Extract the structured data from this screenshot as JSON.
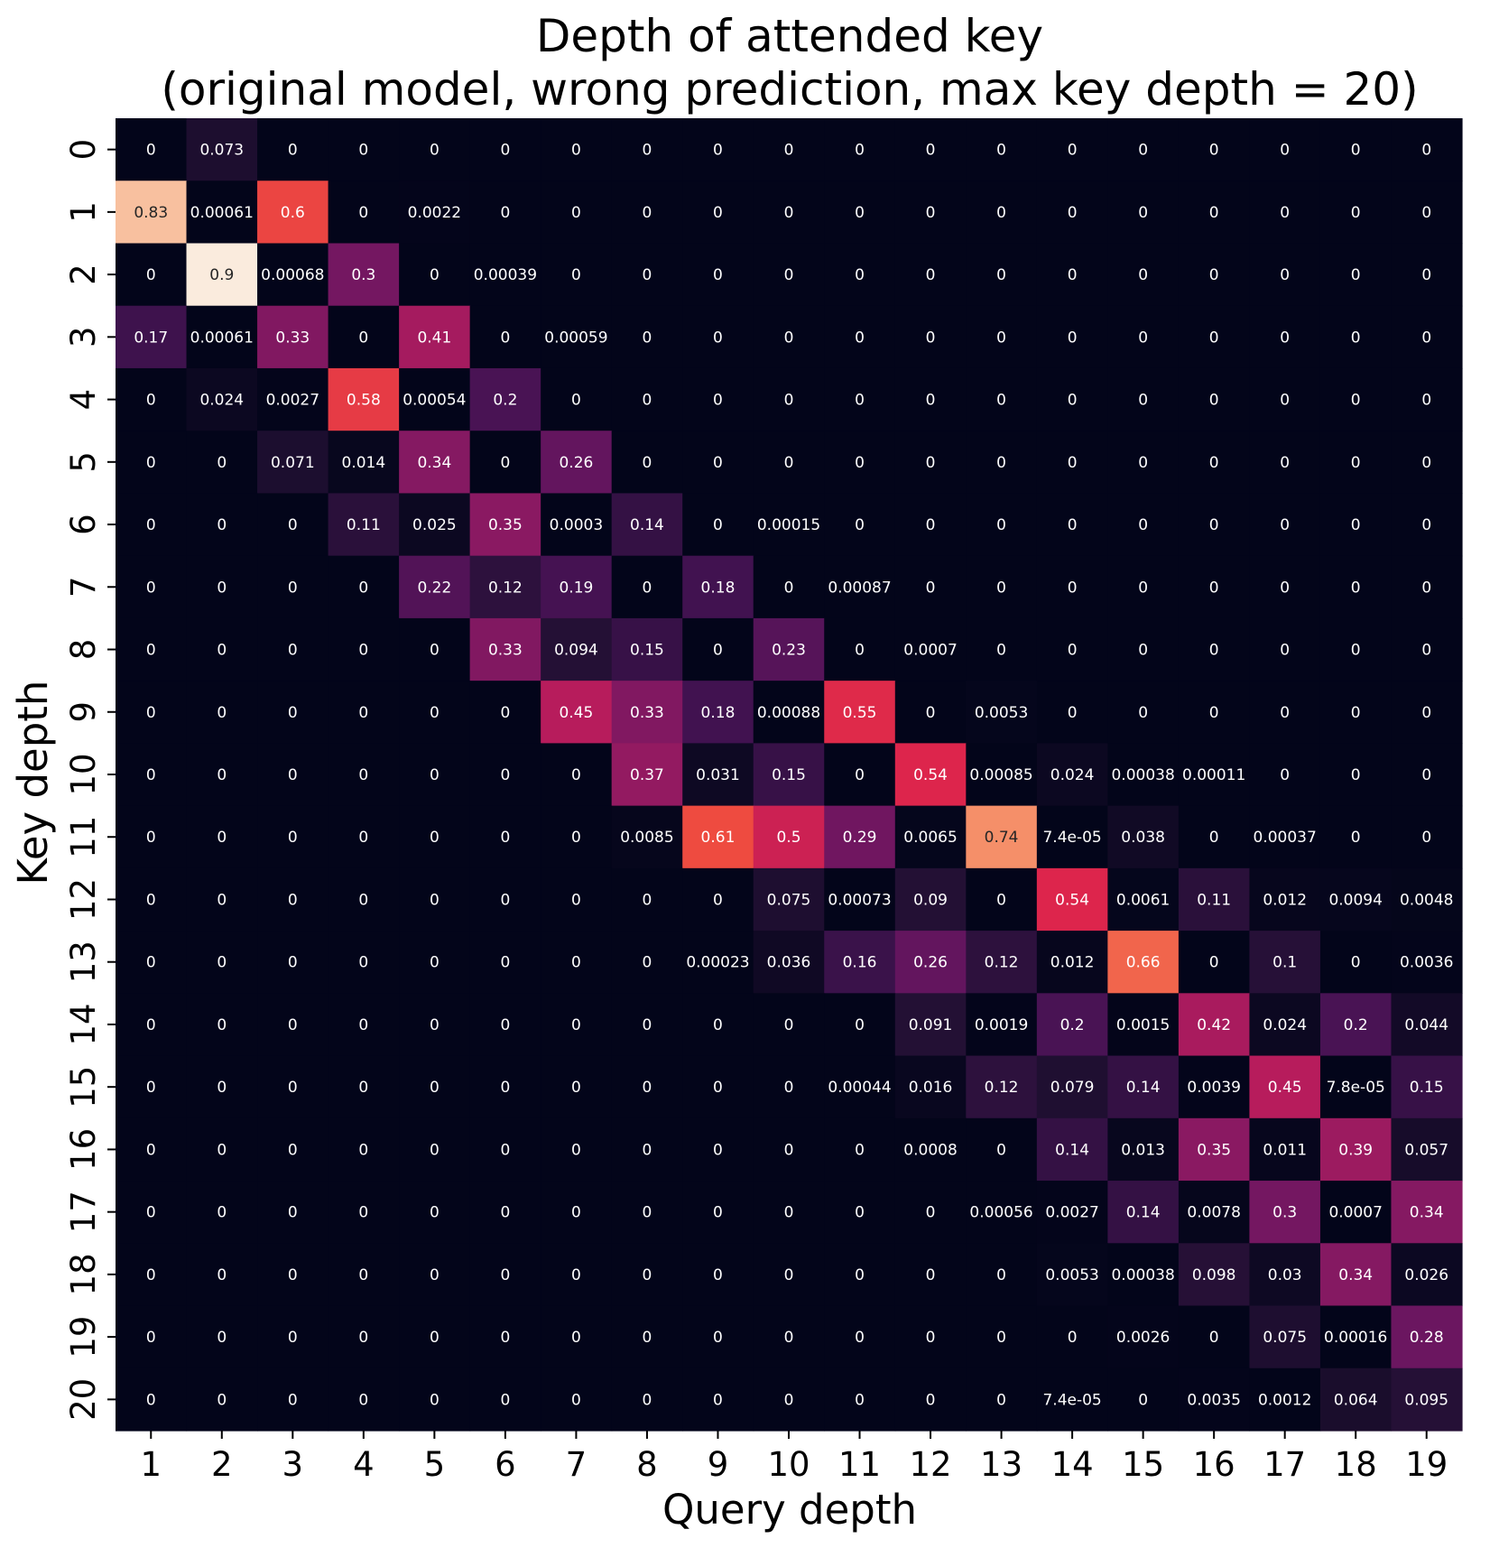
{
  "chart_data": {
    "type": "heatmap",
    "title": "Depth of attended key\n(original model, wrong prediction, max key depth = 20)",
    "xlabel": "Query depth",
    "ylabel": "Key depth",
    "x_categories": [
      "1",
      "2",
      "3",
      "4",
      "5",
      "6",
      "7",
      "8",
      "9",
      "10",
      "11",
      "12",
      "13",
      "14",
      "15",
      "16",
      "17",
      "18",
      "19"
    ],
    "y_categories": [
      "0",
      "1",
      "2",
      "3",
      "4",
      "5",
      "6",
      "7",
      "8",
      "9",
      "10",
      "11",
      "12",
      "13",
      "14",
      "15",
      "16",
      "17",
      "18",
      "19",
      "20"
    ],
    "colormap": "rocket",
    "vmin": 0,
    "vmax": 0.9,
    "colorbar": false,
    "values": [
      [
        "0",
        "0.073",
        "0",
        "0",
        "0",
        "0",
        "0",
        "0",
        "0",
        "0",
        "0",
        "0",
        "0",
        "0",
        "0",
        "0",
        "0",
        "0",
        "0"
      ],
      [
        "0.83",
        "0.00061",
        "0.6",
        "0",
        "0.0022",
        "0",
        "0",
        "0",
        "0",
        "0",
        "0",
        "0",
        "0",
        "0",
        "0",
        "0",
        "0",
        "0",
        "0"
      ],
      [
        "0",
        "0.9",
        "0.00068",
        "0.3",
        "0",
        "0.00039",
        "0",
        "0",
        "0",
        "0",
        "0",
        "0",
        "0",
        "0",
        "0",
        "0",
        "0",
        "0",
        "0"
      ],
      [
        "0.17",
        "0.00061",
        "0.33",
        "0",
        "0.41",
        "0",
        "0.00059",
        "0",
        "0",
        "0",
        "0",
        "0",
        "0",
        "0",
        "0",
        "0",
        "0",
        "0",
        "0"
      ],
      [
        "0",
        "0.024",
        "0.0027",
        "0.58",
        "0.00054",
        "0.2",
        "0",
        "0",
        "0",
        "0",
        "0",
        "0",
        "0",
        "0",
        "0",
        "0",
        "0",
        "0",
        "0"
      ],
      [
        "0",
        "0",
        "0.071",
        "0.014",
        "0.34",
        "0",
        "0.26",
        "0",
        "0",
        "0",
        "0",
        "0",
        "0",
        "0",
        "0",
        "0",
        "0",
        "0",
        "0"
      ],
      [
        "0",
        "0",
        "0",
        "0.11",
        "0.025",
        "0.35",
        "0.0003",
        "0.14",
        "0",
        "0.00015",
        "0",
        "0",
        "0",
        "0",
        "0",
        "0",
        "0",
        "0",
        "0"
      ],
      [
        "0",
        "0",
        "0",
        "0",
        "0.22",
        "0.12",
        "0.19",
        "0",
        "0.18",
        "0",
        "0.00087",
        "0",
        "0",
        "0",
        "0",
        "0",
        "0",
        "0",
        "0"
      ],
      [
        "0",
        "0",
        "0",
        "0",
        "0",
        "0.33",
        "0.094",
        "0.15",
        "0",
        "0.23",
        "0",
        "0.0007",
        "0",
        "0",
        "0",
        "0",
        "0",
        "0",
        "0"
      ],
      [
        "0",
        "0",
        "0",
        "0",
        "0",
        "0",
        "0.45",
        "0.33",
        "0.18",
        "0.00088",
        "0.55",
        "0",
        "0.0053",
        "0",
        "0",
        "0",
        "0",
        "0",
        "0"
      ],
      [
        "0",
        "0",
        "0",
        "0",
        "0",
        "0",
        "0",
        "0.37",
        "0.031",
        "0.15",
        "0",
        "0.54",
        "0.00085",
        "0.024",
        "0.00038",
        "0.00011",
        "0",
        "0",
        "0"
      ],
      [
        "0",
        "0",
        "0",
        "0",
        "0",
        "0",
        "0",
        "0.0085",
        "0.61",
        "0.5",
        "0.29",
        "0.0065",
        "0.74",
        "7.4e-05",
        "0.038",
        "0",
        "0.00037",
        "0",
        "0"
      ],
      [
        "0",
        "0",
        "0",
        "0",
        "0",
        "0",
        "0",
        "0",
        "0",
        "0.075",
        "0.00073",
        "0.09",
        "0",
        "0.54",
        "0.0061",
        "0.11",
        "0.012",
        "0.0094",
        "0.0048"
      ],
      [
        "0",
        "0",
        "0",
        "0",
        "0",
        "0",
        "0",
        "0",
        "0.00023",
        "0.036",
        "0.16",
        "0.26",
        "0.12",
        "0.012",
        "0.66",
        "0",
        "0.1",
        "0",
        "0.0036"
      ],
      [
        "0",
        "0",
        "0",
        "0",
        "0",
        "0",
        "0",
        "0",
        "0",
        "0",
        "0",
        "0.091",
        "0.0019",
        "0.2",
        "0.0015",
        "0.42",
        "0.024",
        "0.2",
        "0.044"
      ],
      [
        "0",
        "0",
        "0",
        "0",
        "0",
        "0",
        "0",
        "0",
        "0",
        "0",
        "0.00044",
        "0.016",
        "0.12",
        "0.079",
        "0.14",
        "0.0039",
        "0.45",
        "7.8e-05",
        "0.15"
      ],
      [
        "0",
        "0",
        "0",
        "0",
        "0",
        "0",
        "0",
        "0",
        "0",
        "0",
        "0",
        "0.0008",
        "0",
        "0.14",
        "0.013",
        "0.35",
        "0.011",
        "0.39",
        "0.057"
      ],
      [
        "0",
        "0",
        "0",
        "0",
        "0",
        "0",
        "0",
        "0",
        "0",
        "0",
        "0",
        "0",
        "0.00056",
        "0.0027",
        "0.14",
        "0.0078",
        "0.3",
        "0.0007",
        "0.34"
      ],
      [
        "0",
        "0",
        "0",
        "0",
        "0",
        "0",
        "0",
        "0",
        "0",
        "0",
        "0",
        "0",
        "0",
        "0.0053",
        "0.00038",
        "0.098",
        "0.03",
        "0.34",
        "0.026"
      ],
      [
        "0",
        "0",
        "0",
        "0",
        "0",
        "0",
        "0",
        "0",
        "0",
        "0",
        "0",
        "0",
        "0",
        "0",
        "0.0026",
        "0",
        "0.075",
        "0.00016",
        "0.28"
      ],
      [
        "0",
        "0",
        "0",
        "0",
        "0",
        "0",
        "0",
        "0",
        "0",
        "0",
        "0",
        "0",
        "0",
        "7.4e-05",
        "0",
        "0.0035",
        "0.0012",
        "0.064",
        "0.095"
      ]
    ]
  }
}
